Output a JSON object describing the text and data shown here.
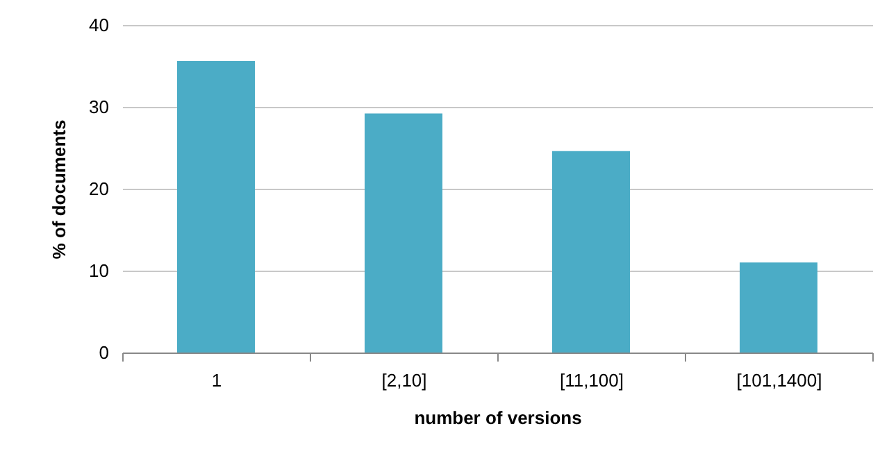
{
  "chart_data": {
    "type": "bar",
    "xlabel": "number of versions",
    "ylabel": "% of documents",
    "categories": [
      "1",
      "[2,10]",
      "[11,100]",
      "[101,1400]"
    ],
    "values": [
      35.6,
      29.2,
      24.6,
      11.0
    ],
    "color": "#4bacc6",
    "ylim": [
      0,
      40
    ],
    "yticks": [
      0,
      10,
      20,
      30,
      40
    ],
    "grid": "y"
  }
}
